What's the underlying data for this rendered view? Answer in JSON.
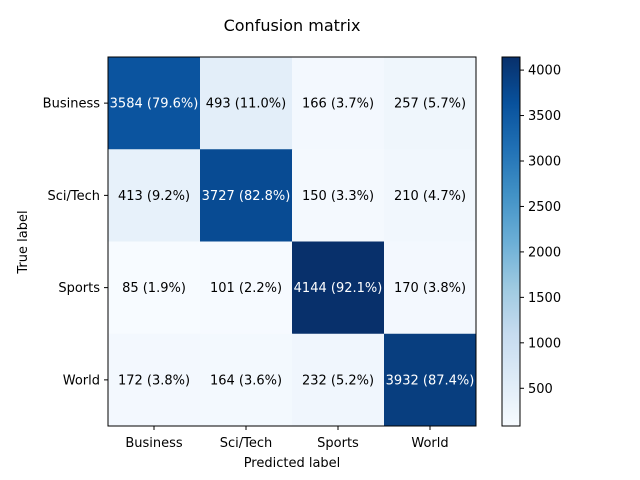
{
  "chart_data": {
    "type": "heatmap",
    "title": "Confusion matrix",
    "xlabel": "Predicted label",
    "ylabel": "True label",
    "x_categories": [
      "Business",
      "Sci/Tech",
      "Sports",
      "World"
    ],
    "y_categories": [
      "Business",
      "Sci/Tech",
      "Sports",
      "World"
    ],
    "values": [
      [
        3584,
        493,
        166,
        257
      ],
      [
        413,
        3727,
        150,
        210
      ],
      [
        85,
        101,
        4144,
        170
      ],
      [
        172,
        164,
        232,
        3932
      ]
    ],
    "cell_labels": [
      [
        "3584 (79.6%)",
        "493 (11.0%)",
        "166 (3.7%)",
        "257 (5.7%)"
      ],
      [
        "413 (9.2%)",
        "3727 (82.8%)",
        "150 (3.3%)",
        "210 (4.7%)"
      ],
      [
        "85 (1.9%)",
        "101 (2.2%)",
        "4144 (92.1%)",
        "170 (3.8%)"
      ],
      [
        "172 (3.8%)",
        "164 (3.6%)",
        "232 (5.2%)",
        "3932 (87.4%)"
      ]
    ],
    "colormap": "Blues",
    "colorbar": {
      "range": [
        85,
        4144
      ],
      "ticks": [
        500,
        1000,
        1500,
        2000,
        2500,
        3000,
        3500,
        4000
      ],
      "tick_labels": [
        "500",
        "1000",
        "1500",
        "2000",
        "2500",
        "3000",
        "3500",
        "4000"
      ]
    }
  }
}
